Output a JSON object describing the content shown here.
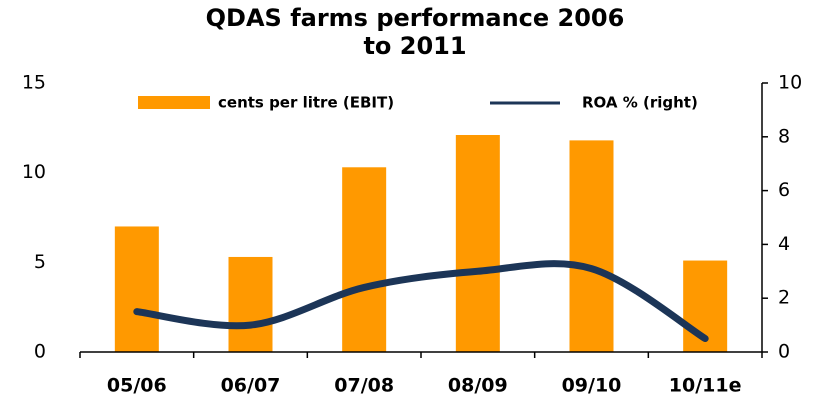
{
  "chart_data": {
    "type": "bar-line",
    "title": "QDAS farms performance 2006 to 2011",
    "categories": [
      "05/06",
      "06/07",
      "07/08",
      "08/09",
      "09/10",
      "10/11e"
    ],
    "series": [
      {
        "name": "cents per litre (EBIT)",
        "type": "bar",
        "color": "#ff9900",
        "values": [
          7.0,
          5.3,
          10.3,
          12.1,
          11.8,
          5.1
        ]
      },
      {
        "name": "ROA % (right)",
        "type": "line",
        "axis": "y2",
        "color": "#1c3557",
        "values": [
          1.5,
          1.0,
          2.4,
          3.0,
          3.1,
          0.5
        ]
      }
    ],
    "ylim": [
      0,
      15
    ],
    "yticks": [
      0,
      5,
      10,
      15
    ],
    "y2lim": [
      0,
      10
    ],
    "y2ticks": [
      0,
      2,
      4,
      6,
      8,
      10
    ],
    "legend": "top"
  }
}
